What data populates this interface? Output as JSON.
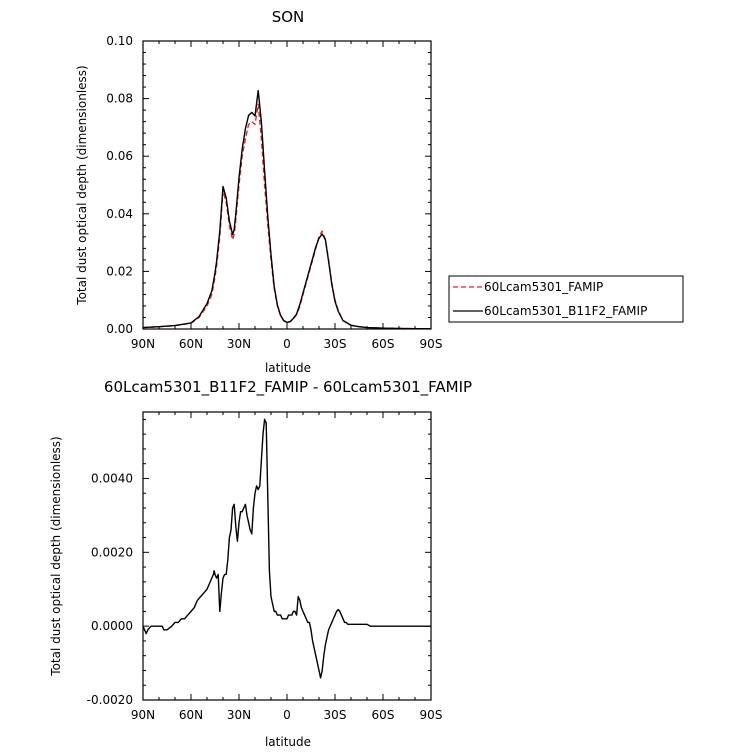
{
  "chart_data": [
    {
      "type": "line",
      "title": "SON",
      "xlabel": "latitude",
      "ylabel": "Total dust optical depth (dimensionless)",
      "xlim": [
        90,
        -90
      ],
      "ylim": [
        0.0,
        0.1
      ],
      "xticks": [
        90,
        60,
        30,
        0,
        -30,
        -60,
        -90
      ],
      "xtick_labels": [
        "90N",
        "60N",
        "30N",
        "0",
        "30S",
        "60S",
        "90S"
      ],
      "yticks": [
        0.0,
        0.02,
        0.04,
        0.06,
        0.08,
        0.1
      ],
      "ytick_labels": [
        "0.00",
        "0.02",
        "0.04",
        "0.06",
        "0.08",
        "0.10"
      ],
      "legend_position": "right",
      "series": [
        {
          "name": "60Lcam5301_FAMIP",
          "color": "#e8202a",
          "dash": "dashed",
          "x": [
            90,
            80,
            70,
            60,
            55,
            50,
            47,
            45,
            44,
            42,
            40,
            38,
            36,
            34,
            33,
            32,
            30,
            28,
            26,
            24,
            22,
            20,
            18,
            16,
            14,
            12,
            10,
            8,
            6,
            4,
            2,
            0,
            -2,
            -4,
            -6,
            -8,
            -10,
            -12,
            -14,
            -16,
            -18,
            -20,
            -22,
            -24,
            -26,
            -28,
            -30,
            -32,
            -35,
            -40,
            -45,
            -50,
            -60,
            -70,
            -80,
            -90
          ],
          "y": [
            0.0005,
            0.0008,
            0.0012,
            0.002,
            0.004,
            0.008,
            0.012,
            0.018,
            0.022,
            0.032,
            0.048,
            0.044,
            0.036,
            0.031,
            0.033,
            0.038,
            0.05,
            0.06,
            0.066,
            0.071,
            0.072,
            0.071,
            0.078,
            0.066,
            0.05,
            0.036,
            0.024,
            0.014,
            0.008,
            0.0045,
            0.0028,
            0.0022,
            0.0025,
            0.0035,
            0.005,
            0.0078,
            0.012,
            0.016,
            0.02,
            0.024,
            0.028,
            0.032,
            0.034,
            0.031,
            0.024,
            0.016,
            0.01,
            0.0065,
            0.003,
            0.0013,
            0.0008,
            0.0005,
            0.0003,
            0.0002,
            0.0001,
            0.0001
          ]
        },
        {
          "name": "60Lcam5301_B11F2_FAMIP",
          "color": "#000000",
          "dash": "solid",
          "x": [
            90,
            80,
            70,
            60,
            55,
            50,
            47,
            45,
            44,
            42,
            40,
            38,
            36,
            34,
            33,
            32,
            30,
            28,
            26,
            24,
            22,
            20,
            18,
            16,
            14,
            12,
            10,
            8,
            6,
            4,
            2,
            0,
            -2,
            -4,
            -6,
            -8,
            -10,
            -12,
            -14,
            -16,
            -18,
            -20,
            -22,
            -24,
            -26,
            -28,
            -30,
            -32,
            -35,
            -40,
            -45,
            -50,
            -60,
            -70,
            -80,
            -90
          ],
          "y": [
            0.0005,
            0.0008,
            0.0012,
            0.0021,
            0.0043,
            0.0088,
            0.0132,
            0.0195,
            0.0235,
            0.034,
            0.0495,
            0.0455,
            0.0375,
            0.0328,
            0.0345,
            0.04,
            0.0525,
            0.0625,
            0.0695,
            0.0742,
            0.0752,
            0.074,
            0.0828,
            0.0718,
            0.055,
            0.039,
            0.0258,
            0.0148,
            0.0083,
            0.0047,
            0.0029,
            0.0023,
            0.0026,
            0.0037,
            0.0052,
            0.0085,
            0.0125,
            0.0165,
            0.0205,
            0.0245,
            0.0285,
            0.0315,
            0.033,
            0.031,
            0.0235,
            0.0155,
            0.0096,
            0.0062,
            0.0029,
            0.0013,
            0.0008,
            0.0005,
            0.0003,
            0.0002,
            0.0001,
            0.0001
          ]
        }
      ]
    },
    {
      "type": "line",
      "title": "60Lcam5301_B11F2_FAMIP - 60Lcam5301_FAMIP",
      "xlabel": "latitude",
      "ylabel": "Total dust optical depth (dimensionless)",
      "xlim": [
        90,
        -90
      ],
      "ylim": [
        -0.002,
        0.0058
      ],
      "xticks": [
        90,
        60,
        30,
        0,
        -30,
        -60,
        -90
      ],
      "xtick_labels": [
        "90N",
        "60N",
        "30N",
        "0",
        "30S",
        "60S",
        "90S"
      ],
      "yticks": [
        -0.002,
        0.0,
        0.002,
        0.004
      ],
      "ytick_labels": [
        "-0.0020",
        "0.0000",
        "0.0020",
        "0.0040"
      ],
      "series": [
        {
          "name": "",
          "color": "#000000",
          "dash": "solid",
          "x": [
            90,
            89,
            88,
            87,
            85,
            83,
            81,
            80,
            79,
            78,
            77,
            75,
            72,
            70,
            68,
            66,
            64,
            62,
            60,
            58,
            56,
            54,
            52,
            50,
            48,
            47,
            46,
            45.5,
            45,
            44,
            43,
            42,
            41,
            40,
            39,
            38,
            37,
            36,
            35,
            34,
            33,
            32,
            31,
            30,
            29,
            28,
            27,
            26,
            25,
            24,
            23,
            22,
            21,
            20,
            19,
            18,
            17,
            16,
            15,
            14,
            13,
            12,
            11,
            10,
            9,
            8,
            7,
            6,
            5,
            4,
            3,
            2,
            1,
            0,
            -1,
            -2,
            -3,
            -4,
            -5,
            -6,
            -7,
            -8,
            -9,
            -10,
            -11,
            -12,
            -13,
            -14,
            -15,
            -16,
            -17,
            -18,
            -19,
            -20,
            -21,
            -22,
            -23,
            -24,
            -25,
            -26,
            -27,
            -28,
            -29,
            -30,
            -31,
            -32,
            -33,
            -34,
            -35,
            -36,
            -37,
            -38,
            -40,
            -42,
            -44,
            -46,
            -48,
            -50,
            -52,
            -55,
            -58,
            -60,
            -62,
            -65,
            -70,
            -75,
            -80,
            -85,
            -90
          ],
          "y": [
            0.0,
            -0.0001,
            -0.0002,
            -0.0001,
            0.0,
            0.0,
            0.0,
            0.0,
            0.0,
            0.0,
            -0.0001,
            -0.0001,
            0.0,
            0.0001,
            0.0001,
            0.0002,
            0.0002,
            0.0003,
            0.0004,
            0.0005,
            0.0007,
            0.0008,
            0.0009,
            0.001,
            0.0012,
            0.0013,
            0.0014,
            0.0015,
            0.0014,
            0.0013,
            0.0014,
            0.0004,
            0.0009,
            0.0013,
            0.0014,
            0.0014,
            0.0018,
            0.0024,
            0.0026,
            0.0032,
            0.0033,
            0.0027,
            0.0023,
            0.0028,
            0.0031,
            0.0031,
            0.0032,
            0.0033,
            0.003,
            0.0028,
            0.0026,
            0.0025,
            0.0032,
            0.0036,
            0.0038,
            0.0037,
            0.0038,
            0.0045,
            0.0052,
            0.0056,
            0.0055,
            0.0035,
            0.0015,
            0.0008,
            0.0006,
            0.0004,
            0.0004,
            0.0003,
            0.0003,
            0.0003,
            0.0002,
            0.0002,
            0.0002,
            0.0002,
            0.0003,
            0.0003,
            0.0003,
            0.0004,
            0.0004,
            0.0003,
            0.0008,
            0.0007,
            0.0005,
            0.0004,
            0.0003,
            0.0002,
            0.0001,
            0.0001,
            -0.0001,
            -0.0004,
            -0.0006,
            -0.0008,
            -0.001,
            -0.0012,
            -0.0014,
            -0.0012,
            -0.0008,
            -0.0005,
            -0.0003,
            -0.0001,
            0.0,
            0.0001,
            0.0002,
            0.0003,
            0.0004,
            0.00045,
            0.0004,
            0.0003,
            0.0002,
            0.0001,
            0.0001,
            5e-05,
            5e-05,
            5e-05,
            5e-05,
            5e-05,
            5e-05,
            5e-05,
            0.0,
            0.0,
            0.0,
            0.0,
            0.0,
            0.0,
            0.0,
            0.0,
            0.0,
            0.0,
            0.0
          ]
        }
      ]
    }
  ]
}
